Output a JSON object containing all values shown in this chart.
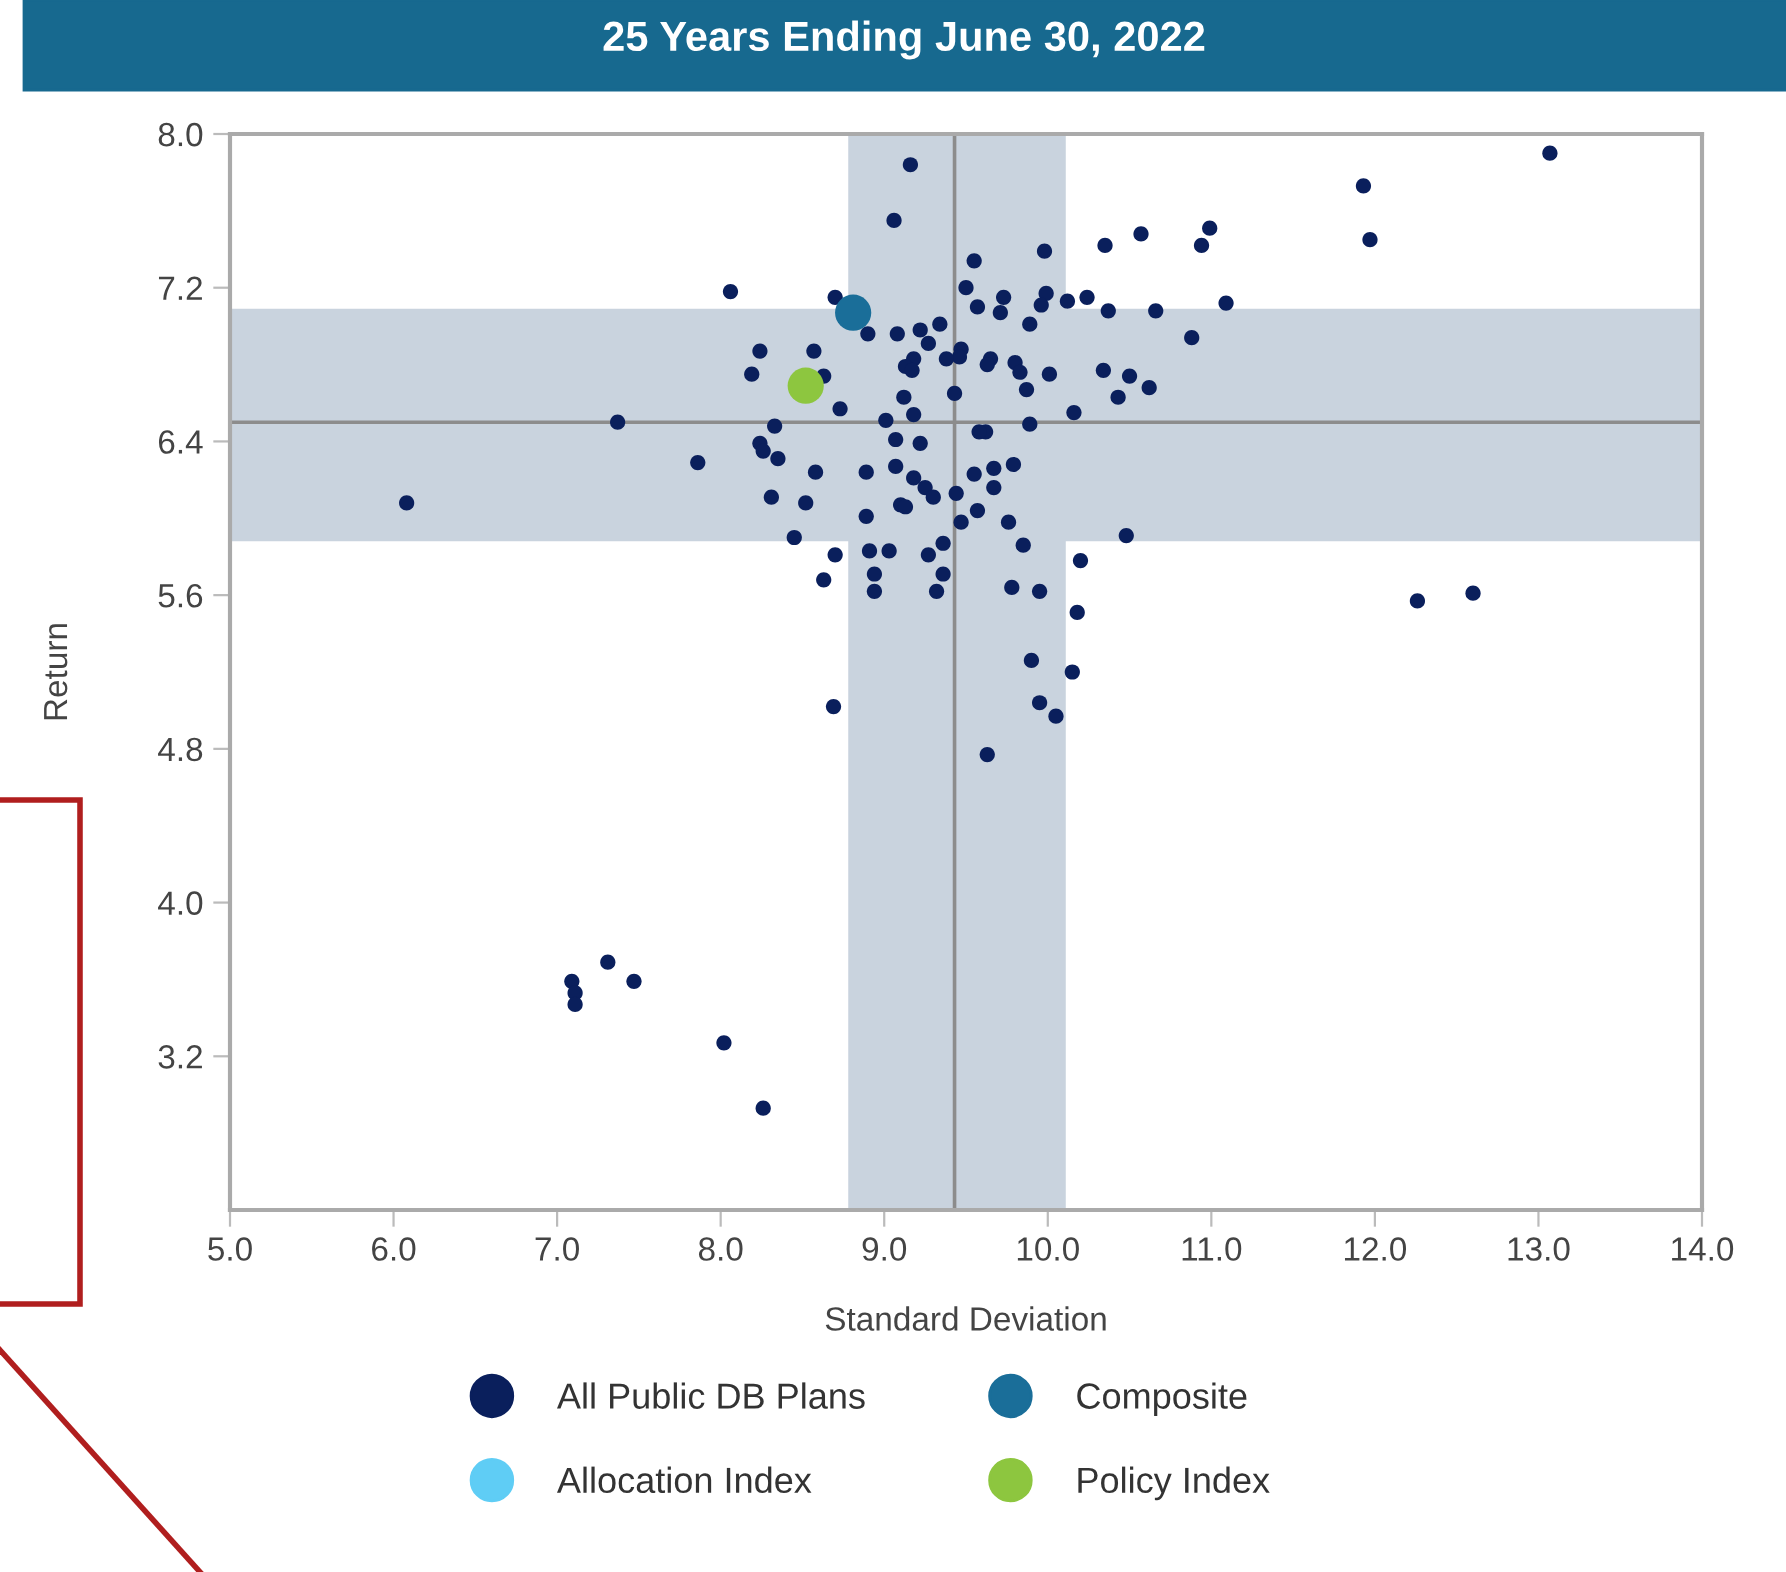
{
  "chart_data": {
    "type": "scatter",
    "title": "25 Years Ending June 30, 2022",
    "xlabel": "Standard Deviation",
    "ylabel": "Return",
    "xlim": [
      5.0,
      14.0
    ],
    "xticks": [
      {
        "value": 5,
        "label": "5.0"
      },
      {
        "value": 6,
        "label": "6.0"
      },
      {
        "value": 7,
        "label": "7.0"
      },
      {
        "value": 8,
        "label": "8.0"
      },
      {
        "value": 9,
        "label": "9.0"
      },
      {
        "value": 10,
        "label": "10.0"
      },
      {
        "value": 11,
        "label": "11.0"
      },
      {
        "value": 12,
        "label": "12.0"
      },
      {
        "value": 13,
        "label": "13.0"
      },
      {
        "value": 14,
        "label": "14.0"
      }
    ],
    "ylim": [
      2.4,
      8.0
    ],
    "yticks": [
      3.2,
      {
        "value": 4,
        "label": "4.0"
      },
      4.8,
      5.6,
      6.4,
      7.2,
      {
        "value": 8,
        "label": "8.0"
      }
    ],
    "grid": false,
    "legend": "bottom",
    "marker": "circle",
    "bands": [
      {
        "axis": "x",
        "from": 8.78,
        "to": 10.11,
        "color": "#c9d3de"
      },
      {
        "axis": "y",
        "from": 5.88,
        "to": 7.09,
        "color": "#c9d3de"
      }
    ],
    "ref_lines": [
      {
        "axis": "x",
        "value": 9.43,
        "color": "#8c8c8c"
      },
      {
        "axis": "y",
        "value": 6.5,
        "color": "#8c8c8c"
      }
    ],
    "series": [
      {
        "name": "All Public DB Plans",
        "color": "#0a1f5c",
        "x": [
          9.16,
          9.06,
          8.06,
          8.7,
          8.9,
          9.08,
          9.22,
          9.34,
          9.27,
          9.55,
          9.5,
          9.57,
          9.71,
          9.73,
          9.98,
          9.99,
          9.96,
          9.89,
          10.12,
          10.24,
          10.35,
          10.37,
          10.57,
          10.66,
          10.99,
          10.94,
          11.09,
          10.88,
          11.93,
          11.97,
          13.07,
          8.24,
          8.57,
          8.19,
          8.63,
          8.73,
          9.12,
          9.18,
          9.01,
          9.43,
          9.47,
          9.46,
          9.38,
          9.18,
          9.13,
          9.17,
          9.65,
          9.63,
          9.8,
          9.83,
          9.87,
          10.01,
          10.16,
          9.89,
          9.62,
          9.58,
          10.34,
          10.5,
          10.43,
          10.62,
          7.37,
          8.33,
          8.24,
          8.26,
          8.35,
          7.86,
          8.58,
          8.89,
          9.07,
          9.22,
          9.07,
          9.18,
          9.25,
          9.3,
          9.44,
          9.55,
          9.67,
          9.79,
          9.67,
          9.57,
          8.31,
          8.52,
          9.1,
          9.13,
          8.89,
          6.08,
          8.45,
          9.47,
          9.76,
          9.85,
          10.48,
          8.7,
          8.91,
          9.03,
          9.27,
          9.36,
          8.63,
          8.94,
          8.94,
          9.36,
          9.32,
          9.78,
          9.95,
          10.2,
          10.18,
          12.26,
          12.6,
          9.9,
          10.15,
          8.69,
          9.95,
          10.05,
          9.63,
          7.09,
          7.11,
          7.11,
          7.31,
          7.47,
          8.02,
          8.26
        ],
        "values": [
          7.84,
          7.55,
          7.18,
          7.15,
          6.96,
          6.96,
          6.98,
          7.01,
          6.91,
          7.34,
          7.2,
          7.1,
          7.07,
          7.15,
          7.39,
          7.17,
          7.11,
          7.01,
          7.13,
          7.15,
          7.42,
          7.08,
          7.48,
          7.08,
          7.51,
          7.42,
          7.12,
          6.94,
          7.73,
          7.45,
          7.9,
          6.87,
          6.87,
          6.75,
          6.74,
          6.57,
          6.63,
          6.54,
          6.51,
          6.65,
          6.88,
          6.84,
          6.83,
          6.83,
          6.79,
          6.77,
          6.83,
          6.8,
          6.81,
          6.76,
          6.67,
          6.75,
          6.55,
          6.49,
          6.45,
          6.45,
          6.77,
          6.74,
          6.63,
          6.68,
          6.5,
          6.48,
          6.39,
          6.35,
          6.31,
          6.29,
          6.24,
          6.24,
          6.41,
          6.39,
          6.27,
          6.21,
          6.16,
          6.11,
          6.13,
          6.23,
          6.26,
          6.28,
          6.16,
          6.04,
          6.11,
          6.08,
          6.07,
          6.06,
          6.01,
          6.08,
          5.9,
          5.98,
          5.98,
          5.86,
          5.91,
          5.81,
          5.83,
          5.83,
          5.81,
          5.87,
          5.68,
          5.71,
          5.62,
          5.71,
          5.62,
          5.64,
          5.62,
          5.78,
          5.51,
          5.57,
          5.61,
          5.26,
          5.2,
          5.02,
          5.04,
          4.97,
          4.77,
          3.59,
          3.53,
          3.47,
          3.69,
          3.59,
          3.27,
          2.93
        ]
      },
      {
        "name": "Composite",
        "color": "#1a6e99",
        "x": [
          8.81
        ],
        "values": [
          7.07
        ]
      },
      {
        "name": "Allocation Index",
        "color": "#5fcdf5",
        "x": [
          null
        ],
        "values": [
          null
        ]
      },
      {
        "name": "Policy Index",
        "color": "#8dc63f",
        "x": [
          8.52
        ],
        "values": [
          6.69
        ]
      }
    ]
  }
}
